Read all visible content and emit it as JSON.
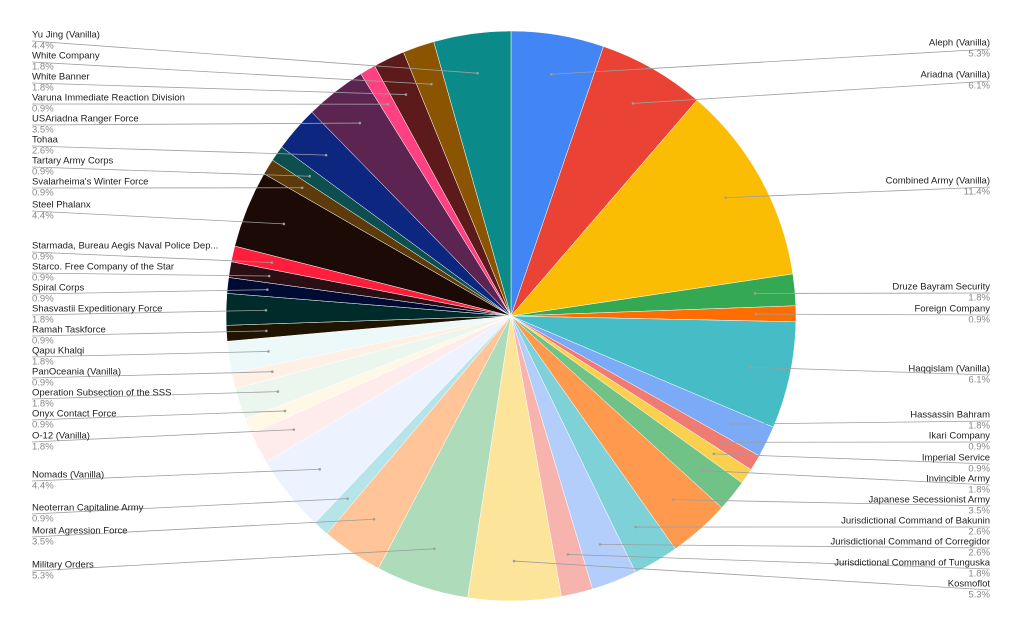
{
  "chart_data": {
    "type": "pie",
    "categories": [
      "Aleph (Vanilla)",
      "Ariadna (Vanilla)",
      "Combined Army (Vanilla)",
      "Druze Bayram Security",
      "Foreign Company",
      "Haqqislam (Vanilla)",
      "Hassassin Bahram",
      "Ikari Company",
      "Imperial Service",
      "Invincible Army",
      "Japanese Secessionist Army",
      "Jurisdictional Command of Bakunin",
      "Jurisdictional Command of Corregidor",
      "Jurisdictional Command of Tunguska",
      "Kosmoflot",
      "Military Orders",
      "Morat Agression Force",
      "Neoterran Capitaline Army",
      "Nomads (Vanilla)",
      "O-12 (Vanilla)",
      "Onyx Contact Force",
      "Operation Subsection of the SSS",
      "PanOceania (Vanilla)",
      "Qapu Khalqi",
      "Ramah Taskforce",
      "Shasvastii Expeditionary Force",
      "Spiral Corps",
      "Starco. Free Company of the Star",
      "Starmada, Bureau Aegis Naval Police Dep...",
      "Steel Phalanx",
      "Svalarheima's Winter Force",
      "Tartary Army Corps",
      "Tohaa",
      "USAriadna Ranger Force",
      "Varuna Immediate Reaction Division",
      "White Banner",
      "White Company",
      "Yu Jing (Vanilla)"
    ],
    "values": [
      5.3,
      6.1,
      11.4,
      1.8,
      0.9,
      6.1,
      1.8,
      0.9,
      0.9,
      1.8,
      3.5,
      2.6,
      2.6,
      1.8,
      5.3,
      5.3,
      3.5,
      0.9,
      4.4,
      1.8,
      0.9,
      1.8,
      0.9,
      1.8,
      0.9,
      1.8,
      0.9,
      0.9,
      0.9,
      4.4,
      0.9,
      0.9,
      2.6,
      3.5,
      0.9,
      1.8,
      1.8,
      4.4
    ],
    "value_labels": [
      "5.3%",
      "6.1%",
      "11.4%",
      "1.8%",
      "0.9%",
      "6.1%",
      "1.8%",
      "0.9%",
      "0.9%",
      "1.8%",
      "3.5%",
      "2.6%",
      "2.6%",
      "1.8%",
      "5.3%",
      "5.3%",
      "3.5%",
      "0.9%",
      "4.4%",
      "1.8%",
      "0.9%",
      "1.8%",
      "0.9%",
      "1.8%",
      "0.9%",
      "1.8%",
      "0.9%",
      "0.9%",
      "0.9%",
      "4.4%",
      "0.9%",
      "0.9%",
      "2.6%",
      "3.5%",
      "0.9%",
      "1.8%",
      "1.8%",
      "4.4%"
    ],
    "colors": [
      "#4285f4",
      "#ea4335",
      "#fbbc04",
      "#34a853",
      "#ff6d01",
      "#46bdc6",
      "#7baaf7",
      "#f07b72",
      "#fcd04f",
      "#71c287",
      "#ff994d",
      "#7ed1d7",
      "#b3cefb",
      "#f7b4ae",
      "#fde49b",
      "#aedcba",
      "#ffc599",
      "#b5e5e8",
      "#ecf3fe",
      "#fdeceb",
      "#fff8e6",
      "#ebf6ee",
      "#fff0e6",
      "#edf8f9",
      "#1e1400",
      "#002b2b",
      "#000b33",
      "#2c0f14",
      "#ff1f3d",
      "#1c0a06",
      "#5c3a0a",
      "#0d4f4f",
      "#0d2680",
      "#5c2551",
      "#ff4081",
      "#5c1a1a",
      "#8a5400",
      "#0b8a8a"
    ]
  }
}
